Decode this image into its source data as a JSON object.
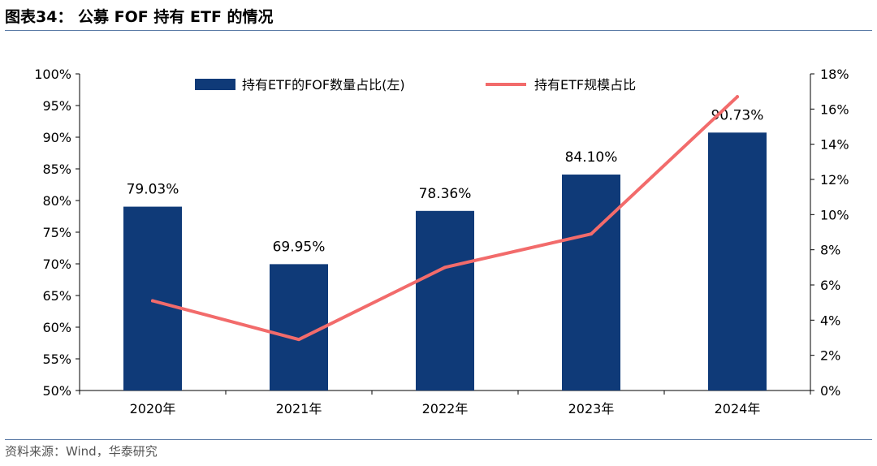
{
  "figure": {
    "title": "图表34： 公募 FOF 持有 ETF 的情况",
    "source": "资料来源：Wind，华泰研究"
  },
  "colors": {
    "bar": "#0f3a78",
    "line": "#f26b6b",
    "rule": "#5a7aa6",
    "axis": "#000000"
  },
  "chart_data": {
    "type": "bar",
    "categories": [
      "2020年",
      "2021年",
      "2022年",
      "2023年",
      "2024年"
    ],
    "series": [
      {
        "name": "持有ETF的FOF数量占比(左)",
        "type": "bar",
        "axis": "left",
        "values": [
          79.03,
          69.95,
          78.36,
          84.1,
          90.73
        ],
        "data_labels": [
          "79.03%",
          "69.95%",
          "78.36%",
          "84.10%",
          "90.73%"
        ]
      },
      {
        "name": "持有ETF规模占比",
        "type": "line",
        "axis": "right",
        "values": [
          5.1,
          2.9,
          7.0,
          8.9,
          16.7
        ]
      }
    ],
    "y_left": {
      "min": 50,
      "max": 100,
      "step": 5,
      "ticks": [
        "50%",
        "55%",
        "60%",
        "65%",
        "70%",
        "75%",
        "80%",
        "85%",
        "90%",
        "95%",
        "100%"
      ]
    },
    "y_right": {
      "min": 0,
      "max": 18,
      "step": 2,
      "ticks": [
        "0%",
        "2%",
        "4%",
        "6%",
        "8%",
        "10%",
        "12%",
        "14%",
        "16%",
        "18%"
      ]
    },
    "legend_position": "top",
    "grid": false
  }
}
